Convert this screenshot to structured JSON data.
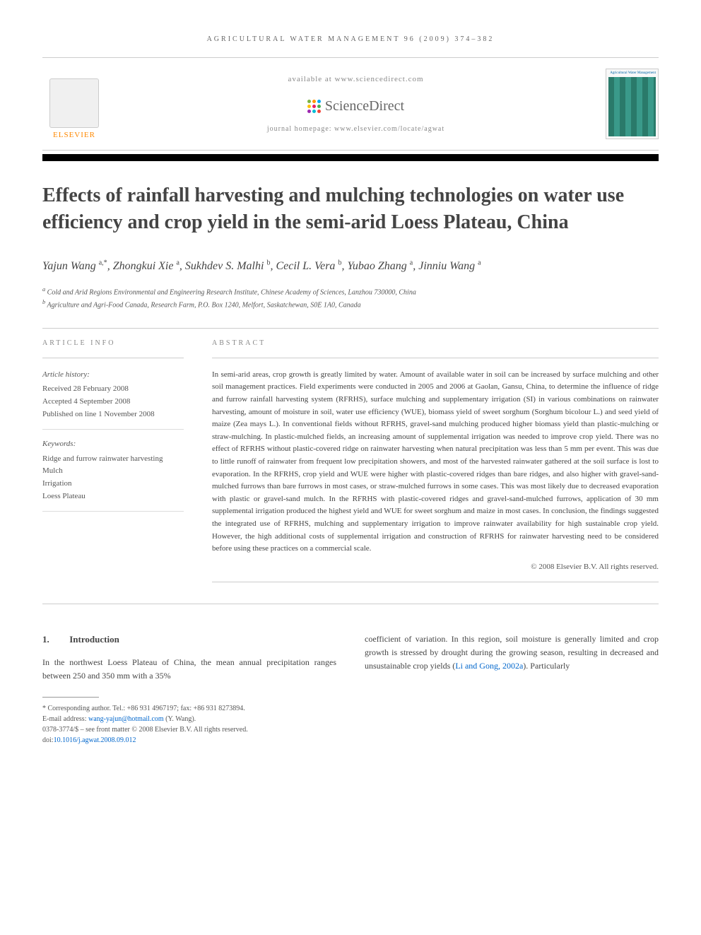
{
  "journal_header": "AGRICULTURAL WATER MANAGEMENT 96 (2009) 374–382",
  "available_at": "available at www.sciencedirect.com",
  "sciencedirect": "ScienceDirect",
  "sd_dot_colors": [
    "#7cb342",
    "#ff9800",
    "#03a9f4",
    "#ffc107",
    "#e91e63",
    "#4caf50",
    "#9c27b0",
    "#00bcd4",
    "#f44336"
  ],
  "homepage_label": "journal homepage: www.elsevier.com/locate/agwat",
  "elsevier_label": "ELSEVIER",
  "cover_title": "Agricultural Water Management",
  "title": "Effects of rainfall harvesting and mulching technologies on water use efficiency and crop yield in the semi-arid Loess Plateau, China",
  "authors_html": "Yajun Wang <sup>a,*</sup>, Zhongkui Xie <sup>a</sup>, Sukhdev S. Malhi <sup>b</sup>, Cecil L. Vera <sup>b</sup>, Yubao Zhang <sup>a</sup>, Jinniu Wang <sup>a</sup>",
  "affiliations": [
    "a Cold and Arid Regions Environmental and Engineering Research Institute, Chinese Academy of Sciences, Lanzhou 730000, China",
    "b Agriculture and Agri-Food Canada, Research Farm, P.O. Box 1240, Melfort, Saskatchewan, S0E 1A0, Canada"
  ],
  "article_info_label": "ARTICLE INFO",
  "abstract_label": "ABSTRACT",
  "history_title": "Article history:",
  "history": [
    "Received 28 February 2008",
    "Accepted 4 September 2008",
    "Published on line 1 November 2008"
  ],
  "keywords_title": "Keywords:",
  "keywords": [
    "Ridge and furrow rainwater harvesting",
    "Mulch",
    "Irrigation",
    "Loess Plateau"
  ],
  "abstract": "In semi-arid areas, crop growth is greatly limited by water. Amount of available water in soil can be increased by surface mulching and other soil management practices. Field experiments were conducted in 2005 and 2006 at Gaolan, Gansu, China, to determine the influence of ridge and furrow rainfall harvesting system (RFRHS), surface mulching and supplementary irrigation (SI) in various combinations on rainwater harvesting, amount of moisture in soil, water use efficiency (WUE), biomass yield of sweet sorghum (Sorghum bicolour L.) and seed yield of maize (Zea mays L.). In conventional fields without RFRHS, gravel-sand mulching produced higher biomass yield than plastic-mulching or straw-mulching. In plastic-mulched fields, an increasing amount of supplemental irrigation was needed to improve crop yield. There was no effect of RFRHS without plastic-covered ridge on rainwater harvesting when natural precipitation was less than 5 mm per event. This was due to little runoff of rainwater from frequent low precipitation showers, and most of the harvested rainwater gathered at the soil surface is lost to evaporation. In the RFRHS, crop yield and WUE were higher with plastic-covered ridges than bare ridges, and also higher with gravel-sand-mulched furrows than bare furrows in most cases, or straw-mulched furrows in some cases. This was most likely due to decreased evaporation with plastic or gravel-sand mulch. In the RFRHS with plastic-covered ridges and gravel-sand-mulched furrows, application of 30 mm supplemental irrigation produced the highest yield and WUE for sweet sorghum and maize in most cases. In conclusion, the findings suggested the integrated use of RFRHS, mulching and supplementary irrigation to improve rainwater availability for high sustainable crop yield. However, the high additional costs of supplemental irrigation and construction of RFRHS for rainwater harvesting need to be considered before using these practices on a commercial scale.",
  "copyright": "© 2008 Elsevier B.V. All rights reserved.",
  "intro_heading_num": "1.",
  "intro_heading": "Introduction",
  "intro_col1": "In the northwest Loess Plateau of China, the mean annual precipitation ranges between 250 and 350 mm with a 35%",
  "intro_col2_pre": "coefficient of variation. In this region, soil moisture is generally limited and crop growth is stressed by drought during the growing season, resulting in decreased and unsustainable crop yields (",
  "intro_citation": "Li and Gong, 2002a",
  "intro_col2_post": "). Particularly",
  "corresponding": "* Corresponding author. Tel.: +86 931 4967197; fax: +86 931 8273894.",
  "email_label": "E-mail address:",
  "email": "wang-yajun@hotmail.com",
  "email_author": "(Y. Wang).",
  "footer_line1": "0378-3774/$ – see front matter © 2008 Elsevier B.V. All rights reserved.",
  "doi_label": "doi:",
  "doi": "10.1016/j.agwat.2008.09.012"
}
